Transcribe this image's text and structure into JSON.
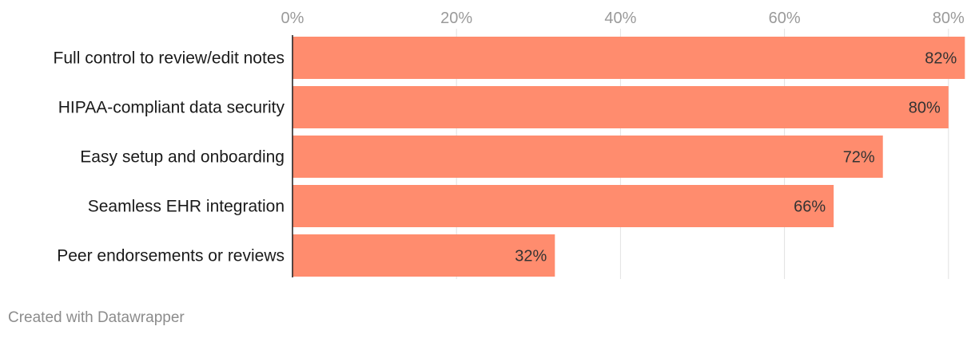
{
  "chart_data": {
    "type": "bar",
    "orientation": "horizontal",
    "categories": [
      "Full control to review/edit notes",
      "HIPAA-compliant data security",
      "Easy setup and onboarding",
      "Seamless EHR integration",
      "Peer endorsements or reviews"
    ],
    "values": [
      82,
      80,
      72,
      66,
      32
    ],
    "value_labels": [
      "82%",
      "80%",
      "72%",
      "66%",
      "32%"
    ],
    "x_ticks": [
      0,
      20,
      40,
      60,
      80
    ],
    "x_tick_labels": [
      "0%",
      "20%",
      "40%",
      "60%",
      "80%"
    ],
    "xlim": [
      0,
      82
    ],
    "grid": true,
    "bar_color": "#ff8c6e",
    "title": "",
    "xlabel": "",
    "ylabel": ""
  },
  "footer": {
    "credit": "Created with Datawrapper"
  }
}
